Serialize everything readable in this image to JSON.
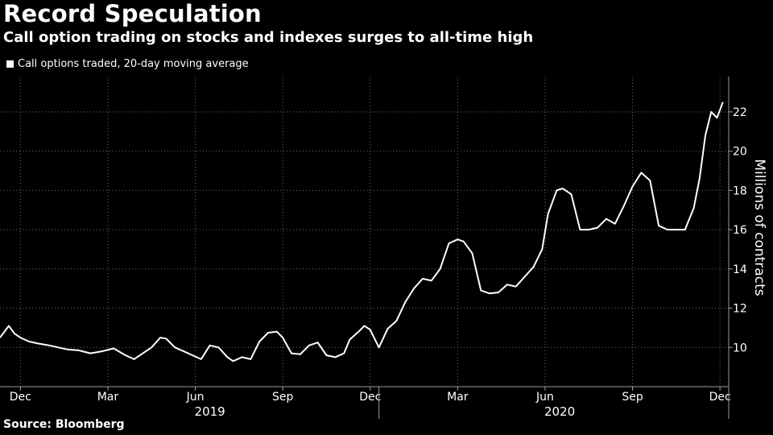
{
  "header": {
    "title": "Record Speculation",
    "subtitle": "Call option trading on stocks and indexes surges to all-time high"
  },
  "legend": {
    "label": "Call options traded, 20-day moving average"
  },
  "footer": {
    "source": "Source: Bloomberg"
  },
  "colors": {
    "background": "#000000",
    "line": "#ffffff",
    "grid": "#6a6a6a",
    "axis": "#9a9a9a"
  },
  "chart_data": {
    "type": "line",
    "title": "Record Speculation",
    "ylabel": "Millions of contracts",
    "xlabel": "",
    "ylim": [
      8,
      23.8
    ],
    "yticks": [
      10,
      12,
      14,
      16,
      18,
      20,
      22
    ],
    "x_month_range": [
      -0.7,
      24.3
    ],
    "month_ticks": [
      {
        "label": "Dec",
        "month": 0
      },
      {
        "label": "Mar",
        "month": 3
      },
      {
        "label": "Jun",
        "month": 6
      },
      {
        "label": "Sep",
        "month": 9
      },
      {
        "label": "Dec",
        "month": 12
      },
      {
        "label": "Mar",
        "month": 15
      },
      {
        "label": "Jun",
        "month": 18
      },
      {
        "label": "Sep",
        "month": 21
      },
      {
        "label": "Dec",
        "month": 24
      }
    ],
    "year_labels": [
      {
        "label": "2019",
        "month": 6.5
      },
      {
        "label": "2020",
        "month": 18.5
      }
    ],
    "year_dividers": [
      12.3
    ],
    "grid": true,
    "series": [
      {
        "name": "Call options traded, 20-day moving average",
        "x_month": [
          -0.7,
          -0.4,
          -0.2,
          0.0,
          0.3,
          0.6,
          1.0,
          1.3,
          1.6,
          2.0,
          2.4,
          2.8,
          3.2,
          3.6,
          3.9,
          4.2,
          4.5,
          4.8,
          5.0,
          5.3,
          5.6,
          5.9,
          6.2,
          6.5,
          6.8,
          7.1,
          7.3,
          7.6,
          7.9,
          8.2,
          8.5,
          8.8,
          9.0,
          9.3,
          9.6,
          9.9,
          10.2,
          10.5,
          10.8,
          11.1,
          11.3,
          11.6,
          11.8,
          12.0,
          12.3,
          12.6,
          12.9,
          13.2,
          13.5,
          13.8,
          14.1,
          14.4,
          14.7,
          15.0,
          15.2,
          15.5,
          15.8,
          16.1,
          16.4,
          16.7,
          17.0,
          17.3,
          17.6,
          17.9,
          18.1,
          18.4,
          18.6,
          18.9,
          19.2,
          19.5,
          19.8,
          20.1,
          20.4,
          20.7,
          21.0,
          21.3,
          21.6,
          21.9,
          22.2,
          22.5,
          22.8,
          23.1,
          23.3,
          23.5,
          23.7,
          23.9,
          24.1
        ],
        "values": [
          10.5,
          11.1,
          10.7,
          10.5,
          10.3,
          10.2,
          10.1,
          10.0,
          9.9,
          9.85,
          9.7,
          9.8,
          9.95,
          9.6,
          9.4,
          9.7,
          10.0,
          10.5,
          10.45,
          10.0,
          9.8,
          9.6,
          9.4,
          10.1,
          10.0,
          9.5,
          9.3,
          9.5,
          9.4,
          10.3,
          10.75,
          10.8,
          10.5,
          9.7,
          9.65,
          10.1,
          10.25,
          9.6,
          9.5,
          9.7,
          10.4,
          10.8,
          11.1,
          10.9,
          10.0,
          10.95,
          11.35,
          12.3,
          13.0,
          13.5,
          13.4,
          14.0,
          15.3,
          15.5,
          15.4,
          14.8,
          12.9,
          12.75,
          12.8,
          13.2,
          13.1,
          13.6,
          14.1,
          15.0,
          16.8,
          18.0,
          18.1,
          17.8,
          16.0,
          16.0,
          16.1,
          16.55,
          16.3,
          17.2,
          18.2,
          18.9,
          18.5,
          16.2,
          16.0,
          16.0,
          16.0,
          17.1,
          18.6,
          20.8,
          22.0,
          21.7,
          22.5
        ]
      }
    ]
  }
}
